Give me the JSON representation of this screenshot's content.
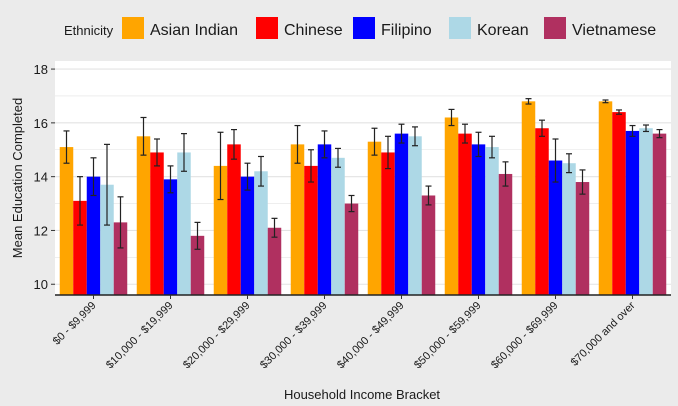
{
  "chart_data": {
    "type": "bar",
    "xlabel": "Household Income Bracket",
    "ylabel": "Mean Education Completed",
    "ylim": [
      9.6,
      18.3
    ],
    "yticks": [
      10,
      12,
      14,
      16,
      18
    ],
    "grid": true,
    "legend": {
      "title": "Ethnicity",
      "placement": "top"
    },
    "categories": [
      "$0 - $9,999",
      "$10,000 - $19,999",
      "$20,000 - $29,999",
      "$30,000 - $39,999",
      "$40,000 - $49,999",
      "$50,000 - $59,999",
      "$60,000 - $69,999",
      "$70,000 and over"
    ],
    "series": [
      {
        "name": "Asian Indian",
        "color": "#ffa500",
        "values": [
          15.1,
          15.5,
          14.4,
          15.2,
          15.3,
          16.2,
          16.8,
          16.8
        ],
        "errors": [
          0.6,
          0.7,
          1.25,
          0.7,
          0.5,
          0.3,
          0.1,
          0.05
        ]
      },
      {
        "name": "Chinese",
        "color": "#ff0000",
        "values": [
          13.1,
          14.9,
          15.2,
          14.4,
          14.9,
          15.6,
          15.8,
          16.4
        ],
        "errors": [
          0.9,
          0.5,
          0.55,
          0.6,
          0.6,
          0.35,
          0.3,
          0.08
        ]
      },
      {
        "name": "Filipino",
        "color": "#0000ff",
        "values": [
          14.0,
          13.9,
          14.0,
          15.2,
          15.6,
          15.2,
          14.6,
          15.7
        ],
        "errors": [
          0.7,
          0.5,
          0.5,
          0.5,
          0.35,
          0.45,
          0.8,
          0.2
        ]
      },
      {
        "name": "Korean",
        "color": "#add8e6",
        "values": [
          13.7,
          14.9,
          14.2,
          14.7,
          15.5,
          15.1,
          14.5,
          15.8
        ],
        "errors": [
          1.5,
          0.7,
          0.55,
          0.35,
          0.35,
          0.4,
          0.35,
          0.12
        ]
      },
      {
        "name": "Vietnamese",
        "color": "#b03060",
        "values": [
          12.3,
          11.8,
          12.1,
          13.0,
          13.3,
          14.1,
          13.8,
          15.6
        ],
        "errors": [
          0.95,
          0.5,
          0.35,
          0.3,
          0.35,
          0.45,
          0.45,
          0.15
        ]
      }
    ]
  }
}
